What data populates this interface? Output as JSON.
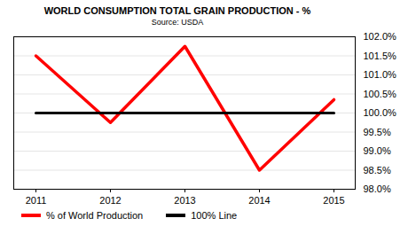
{
  "chart_data": {
    "type": "line",
    "title": "WORLD CONSUMPTION TOTAL GRAIN PRODUCTION - %",
    "subtitle": "Source: USDA",
    "categories": [
      "2011",
      "2012",
      "2013",
      "2014",
      "2015"
    ],
    "series": [
      {
        "name": "% of World Production",
        "color": "#ff0000",
        "values": [
          101.5,
          99.75,
          101.75,
          98.5,
          100.35
        ]
      },
      {
        "name": "100% Line",
        "color": "#000000",
        "values": [
          100,
          100,
          100,
          100,
          100
        ]
      }
    ],
    "ylim": [
      98.0,
      102.0
    ],
    "yticks": [
      {
        "value": 98.0,
        "label": "98.0%"
      },
      {
        "value": 98.5,
        "label": "98.5%"
      },
      {
        "value": 99.0,
        "label": "99.0%"
      },
      {
        "value": 99.5,
        "label": "99.5%"
      },
      {
        "value": 100.0,
        "label": "100.0%"
      },
      {
        "value": 100.5,
        "label": "100.5%"
      },
      {
        "value": 101.0,
        "label": "101.0%"
      },
      {
        "value": 101.5,
        "label": "101.5%"
      },
      {
        "value": 102.0,
        "label": "102.0%"
      }
    ],
    "grid": true,
    "legend": "bottom"
  }
}
